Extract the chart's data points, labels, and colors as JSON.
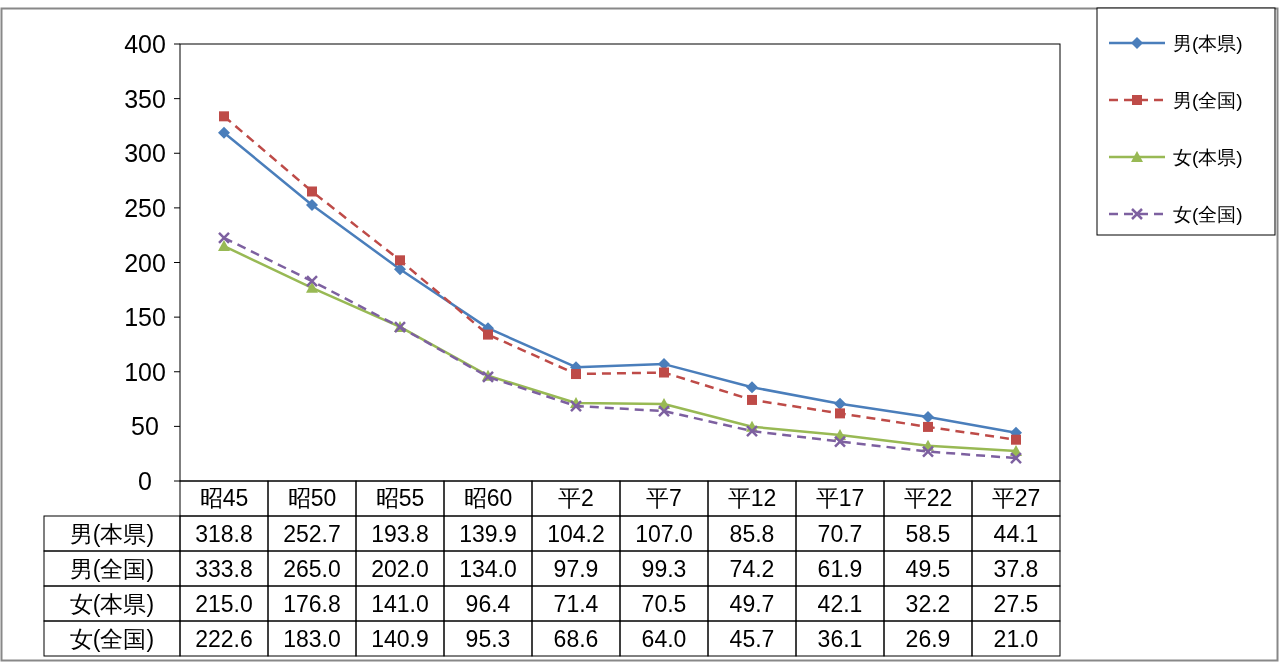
{
  "chart_data": {
    "type": "line",
    "categories": [
      "昭45",
      "昭50",
      "昭55",
      "昭60",
      "平2",
      "平7",
      "平12",
      "平17",
      "平22",
      "平27"
    ],
    "series": [
      {
        "name": "男(本県)",
        "color": "#4a7ebb",
        "marker": "diamond",
        "line_style": "solid",
        "values": [
          318.8,
          252.7,
          193.8,
          139.9,
          104.2,
          107.0,
          85.8,
          70.7,
          58.5,
          44.1
        ],
        "value_labels": [
          "318.8",
          "252.7",
          "193.8",
          "139.9",
          "104.2",
          "107.0",
          "85.8",
          "70.7",
          "58.5",
          "44.1"
        ]
      },
      {
        "name": "男(全国)",
        "color": "#be4b48",
        "marker": "square",
        "line_style": "dashed",
        "values": [
          333.8,
          265.0,
          202.0,
          134.0,
          97.9,
          99.3,
          74.2,
          61.9,
          49.5,
          37.8
        ],
        "value_labels": [
          "333.8",
          "265.0",
          "202.0",
          "134.0",
          "97.9",
          "99.3",
          "74.2",
          "61.9",
          "49.5",
          "37.8"
        ]
      },
      {
        "name": "女(本県)",
        "color": "#98b954",
        "marker": "triangle",
        "line_style": "solid",
        "values": [
          215.0,
          176.8,
          141.0,
          96.4,
          71.4,
          70.5,
          49.7,
          42.1,
          32.2,
          27.5
        ],
        "value_labels": [
          "215.0",
          "176.8",
          "141.0",
          "96.4",
          "71.4",
          "70.5",
          "49.7",
          "42.1",
          "32.2",
          "27.5"
        ]
      },
      {
        "name": "女(全国)",
        "color": "#7d60a0",
        "marker": "cross",
        "line_style": "dashed",
        "values": [
          222.6,
          183.0,
          140.9,
          95.3,
          68.6,
          64.0,
          45.7,
          36.1,
          26.9,
          21.0
        ],
        "value_labels": [
          "222.6",
          "183.0",
          "140.9",
          "95.3",
          "68.6",
          "64.0",
          "45.7",
          "36.1",
          "26.9",
          "21.0"
        ]
      }
    ],
    "ylim": [
      0,
      400
    ],
    "yticks": [
      0,
      50,
      100,
      150,
      200,
      250,
      300,
      350,
      400
    ],
    "legend": "top right"
  }
}
